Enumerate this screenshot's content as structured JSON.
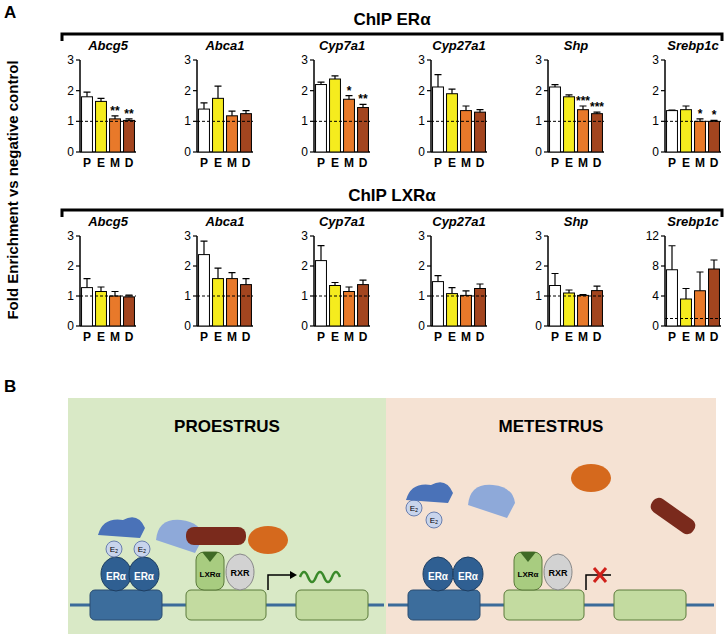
{
  "chart_data": [
    {
      "type": "bar",
      "title": "Abcg5",
      "categories": [
        "P",
        "E",
        "M",
        "D"
      ],
      "values": [
        1.8,
        1.65,
        1.08,
        1.03
      ],
      "errors": [
        0.15,
        0.1,
        0.1,
        0.05
      ],
      "colors": [
        "#ffffff",
        "#f5ec1e",
        "#e8792a",
        "#a3451f"
      ],
      "ylim": [
        0,
        3
      ],
      "yticks": [
        0,
        1,
        2,
        3
      ],
      "reference_line": 1,
      "significance": [
        null,
        null,
        "**",
        "**"
      ]
    },
    {
      "type": "bar",
      "title": "Abca1",
      "categories": [
        "P",
        "E",
        "M",
        "D"
      ],
      "values": [
        1.4,
        1.75,
        1.18,
        1.25
      ],
      "errors": [
        0.2,
        0.4,
        0.15,
        0.1
      ],
      "colors": [
        "#ffffff",
        "#f5ec1e",
        "#e8792a",
        "#a3451f"
      ],
      "ylim": [
        0,
        3
      ],
      "yticks": [
        0,
        1,
        2,
        3
      ],
      "reference_line": 1,
      "significance": [
        null,
        null,
        null,
        null
      ]
    },
    {
      "type": "bar",
      "title": "Cyp7a1",
      "categories": [
        "P",
        "E",
        "M",
        "D"
      ],
      "values": [
        2.2,
        2.38,
        1.72,
        1.45
      ],
      "errors": [
        0.08,
        0.1,
        0.12,
        0.1
      ],
      "colors": [
        "#ffffff",
        "#f5ec1e",
        "#e8792a",
        "#a3451f"
      ],
      "ylim": [
        0,
        3
      ],
      "yticks": [
        0,
        1,
        2,
        3
      ],
      "reference_line": 1,
      "significance": [
        null,
        null,
        "*",
        "**"
      ]
    },
    {
      "type": "bar",
      "title": "Cyp27a1",
      "categories": [
        "P",
        "E",
        "M",
        "D"
      ],
      "values": [
        2.12,
        1.9,
        1.35,
        1.3
      ],
      "errors": [
        0.4,
        0.15,
        0.15,
        0.08
      ],
      "colors": [
        "#ffffff",
        "#f5ec1e",
        "#e8792a",
        "#a3451f"
      ],
      "ylim": [
        0,
        3
      ],
      "yticks": [
        0,
        1,
        2,
        3
      ],
      "reference_line": 1,
      "significance": [
        null,
        null,
        null,
        null
      ]
    },
    {
      "type": "bar",
      "title": "Shp",
      "categories": [
        "P",
        "E",
        "M",
        "D"
      ],
      "values": [
        2.12,
        1.8,
        1.38,
        1.25
      ],
      "errors": [
        0.08,
        0.06,
        0.12,
        0.05
      ],
      "colors": [
        "#ffffff",
        "#f5ec1e",
        "#e8792a",
        "#a3451f"
      ],
      "ylim": [
        0,
        3
      ],
      "yticks": [
        0,
        1,
        2,
        3
      ],
      "reference_line": 1,
      "significance": [
        null,
        null,
        "***",
        "***"
      ]
    },
    {
      "type": "bar",
      "title": "Srebp1c",
      "categories": [
        "P",
        "E",
        "M",
        "D"
      ],
      "values": [
        1.35,
        1.38,
        1.0,
        1.0
      ],
      "errors": [
        0.02,
        0.12,
        0.08,
        0.03
      ],
      "colors": [
        "#ffffff",
        "#f5ec1e",
        "#e8792a",
        "#a3451f"
      ],
      "ylim": [
        0,
        3
      ],
      "yticks": [
        0,
        1,
        2,
        3
      ],
      "reference_line": 1,
      "significance": [
        null,
        null,
        "*",
        "*"
      ]
    },
    {
      "type": "bar",
      "title": "Abcg5",
      "categories": [
        "P",
        "E",
        "M",
        "D"
      ],
      "values": [
        1.28,
        1.15,
        1.0,
        0.97
      ],
      "errors": [
        0.3,
        0.15,
        0.15,
        0.06
      ],
      "colors": [
        "#ffffff",
        "#f5ec1e",
        "#e8792a",
        "#a3451f"
      ],
      "ylim": [
        0,
        3
      ],
      "yticks": [
        0,
        1,
        2,
        3
      ],
      "reference_line": 1,
      "significance": [
        null,
        null,
        null,
        null
      ]
    },
    {
      "type": "bar",
      "title": "Abca1",
      "categories": [
        "P",
        "E",
        "M",
        "D"
      ],
      "values": [
        2.38,
        1.58,
        1.58,
        1.38
      ],
      "errors": [
        0.45,
        0.35,
        0.2,
        0.2
      ],
      "colors": [
        "#ffffff",
        "#f5ec1e",
        "#e8792a",
        "#a3451f"
      ],
      "ylim": [
        0,
        3
      ],
      "yticks": [
        0,
        1,
        2,
        3
      ],
      "reference_line": 1,
      "significance": [
        null,
        null,
        null,
        null
      ]
    },
    {
      "type": "bar",
      "title": "Cyp7a1",
      "categories": [
        "P",
        "E",
        "M",
        "D"
      ],
      "values": [
        2.18,
        1.35,
        1.15,
        1.38
      ],
      "errors": [
        0.5,
        0.1,
        0.15,
        0.15
      ],
      "colors": [
        "#ffffff",
        "#f5ec1e",
        "#e8792a",
        "#a3451f"
      ],
      "ylim": [
        0,
        3
      ],
      "yticks": [
        0,
        1,
        2,
        3
      ],
      "reference_line": 1,
      "significance": [
        null,
        null,
        null,
        null
      ]
    },
    {
      "type": "bar",
      "title": "Cyp27a1",
      "categories": [
        "P",
        "E",
        "M",
        "D"
      ],
      "values": [
        1.48,
        1.08,
        1.02,
        1.25
      ],
      "errors": [
        0.2,
        0.2,
        0.15,
        0.15
      ],
      "colors": [
        "#ffffff",
        "#f5ec1e",
        "#e8792a",
        "#a3451f"
      ],
      "ylim": [
        0,
        3
      ],
      "yticks": [
        0,
        1,
        2,
        3
      ],
      "reference_line": 1,
      "significance": [
        null,
        null,
        null,
        null
      ]
    },
    {
      "type": "bar",
      "title": "Shp",
      "categories": [
        "P",
        "E",
        "M",
        "D"
      ],
      "values": [
        1.35,
        1.1,
        1.02,
        1.18
      ],
      "errors": [
        0.4,
        0.1,
        0.03,
        0.15
      ],
      "colors": [
        "#ffffff",
        "#f5ec1e",
        "#e8792a",
        "#a3451f"
      ],
      "ylim": [
        0,
        3
      ],
      "yticks": [
        0,
        1,
        2,
        3
      ],
      "reference_line": 1,
      "significance": [
        null,
        null,
        null,
        null
      ]
    },
    {
      "type": "bar",
      "title": "Srebp1c",
      "categories": [
        "P",
        "E",
        "M",
        "D"
      ],
      "values": [
        7.5,
        3.6,
        4.7,
        7.6
      ],
      "errors": [
        3.2,
        1.4,
        2.5,
        1.2
      ],
      "colors": [
        "#ffffff",
        "#f5ec1e",
        "#e8792a",
        "#a3451f"
      ],
      "ylim": [
        0,
        12
      ],
      "yticks": [
        0,
        4,
        8,
        12
      ],
      "reference_line": 1,
      "significance": [
        null,
        null,
        null,
        null
      ]
    }
  ],
  "figure": {
    "panel_a_label": "A",
    "y_label": "Fold Enrichment vs negative control",
    "groups": [
      {
        "title": "ChIP ERα"
      },
      {
        "title": "ChIP LXRα"
      }
    ],
    "panel_b": {
      "label": "B",
      "panels": [
        {
          "title": "PROESTRUS",
          "labels": [
            "E₂",
            "E₂",
            "ERα",
            "ERα",
            "LXRα",
            "RXR"
          ]
        },
        {
          "title": "METESTRUS",
          "labels": [
            "E₂",
            "E₂",
            "ERα",
            "ERα",
            "LXRα",
            "RXR"
          ]
        }
      ]
    }
  }
}
